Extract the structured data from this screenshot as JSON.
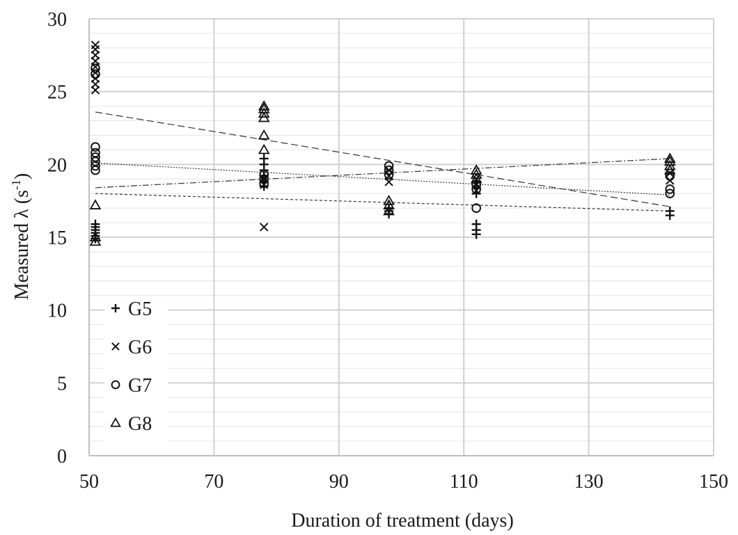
{
  "chart_data": {
    "type": "scatter",
    "title": "",
    "xlabel": "Duration of treatment (days)",
    "ylabel_main": "Measured λ (s",
    "ylabel_sup": "-1",
    "ylabel_close": ")",
    "xlim": [
      50,
      150
    ],
    "ylim": [
      0,
      30
    ],
    "xticks": [
      50,
      70,
      90,
      110,
      130,
      150
    ],
    "yticks": [
      0,
      5,
      10,
      15,
      20,
      25,
      30
    ],
    "x_tick_labels": [
      "50",
      "70",
      "90",
      "110",
      "130",
      "150"
    ],
    "y_tick_labels": [
      "0",
      "5",
      "10",
      "15",
      "20",
      "25",
      "30"
    ],
    "grid": true,
    "minor_grid": true,
    "legend_position": "bottom-left",
    "colors": {
      "marker": "#111111",
      "grid_major": "#d0d0d0",
      "grid_minor": "#e4e4e4",
      "axis": "#bfbfbf"
    },
    "series": [
      {
        "name": "G5",
        "marker": "plus",
        "points": [
          [
            51,
            14.9
          ],
          [
            51,
            15.1
          ],
          [
            51,
            15.3
          ],
          [
            51,
            15.5
          ],
          [
            51,
            15.7
          ],
          [
            51,
            15.9
          ],
          [
            78,
            18.5
          ],
          [
            78,
            18.8
          ],
          [
            78,
            19.2
          ],
          [
            78,
            19.6
          ],
          [
            78,
            20.0
          ],
          [
            78,
            20.4
          ],
          [
            98,
            16.6
          ],
          [
            98,
            16.8
          ],
          [
            98,
            17.0
          ],
          [
            112,
            15.2
          ],
          [
            112,
            15.5
          ],
          [
            112,
            15.9
          ],
          [
            112,
            18.0
          ],
          [
            112,
            18.4
          ],
          [
            112,
            18.8
          ],
          [
            143,
            16.5
          ],
          [
            143,
            16.8
          ]
        ],
        "trendline": {
          "style": "dotted",
          "x": [
            51,
            143
          ],
          "y": [
            18.0,
            16.8
          ]
        }
      },
      {
        "name": "G6",
        "marker": "x",
        "points": [
          [
            51,
            25.1
          ],
          [
            51,
            25.5
          ],
          [
            51,
            25.9
          ],
          [
            51,
            26.3
          ],
          [
            51,
            26.7
          ],
          [
            51,
            27.1
          ],
          [
            51,
            27.5
          ],
          [
            51,
            27.9
          ],
          [
            51,
            28.2
          ],
          [
            78,
            15.7
          ],
          [
            78,
            18.6
          ],
          [
            78,
            19.0
          ],
          [
            98,
            18.8
          ],
          [
            98,
            19.2
          ],
          [
            98,
            19.6
          ],
          [
            112,
            18.2
          ],
          [
            112,
            18.6
          ],
          [
            112,
            19.0
          ],
          [
            143,
            18.9
          ],
          [
            143,
            19.4
          ]
        ],
        "trendline": {
          "style": "dashed",
          "x": [
            51,
            143
          ],
          "y": [
            23.6,
            17.1
          ]
        }
      },
      {
        "name": "G7",
        "marker": "circle",
        "points": [
          [
            51,
            19.6
          ],
          [
            51,
            19.9
          ],
          [
            51,
            20.2
          ],
          [
            51,
            20.5
          ],
          [
            51,
            20.8
          ],
          [
            51,
            21.2
          ],
          [
            51,
            26.2
          ],
          [
            51,
            26.6
          ],
          [
            78,
            18.7
          ],
          [
            78,
            19.0
          ],
          [
            78,
            19.3
          ],
          [
            98,
            19.3
          ],
          [
            98,
            19.6
          ],
          [
            98,
            19.9
          ],
          [
            112,
            17.0
          ],
          [
            112,
            18.3
          ],
          [
            112,
            18.6
          ],
          [
            143,
            18.0
          ],
          [
            143,
            18.3
          ],
          [
            143,
            19.2
          ]
        ],
        "trendline": {
          "style": "dotted-fine",
          "x": [
            51,
            143
          ],
          "y": [
            20.1,
            17.9
          ]
        }
      },
      {
        "name": "G8",
        "marker": "triangle",
        "points": [
          [
            51,
            14.7
          ],
          [
            51,
            15.0
          ],
          [
            51,
            17.2
          ],
          [
            78,
            21.0
          ],
          [
            78,
            22.0
          ],
          [
            78,
            23.2
          ],
          [
            78,
            23.5
          ],
          [
            78,
            23.8
          ],
          [
            78,
            24.0
          ],
          [
            98,
            16.8
          ],
          [
            98,
            17.2
          ],
          [
            98,
            17.5
          ],
          [
            112,
            19.0
          ],
          [
            112,
            19.3
          ],
          [
            112,
            19.6
          ],
          [
            143,
            19.6
          ],
          [
            143,
            19.9
          ],
          [
            143,
            20.2
          ],
          [
            143,
            20.4
          ]
        ],
        "trendline": {
          "style": "dash-dot",
          "x": [
            51,
            143
          ],
          "y": [
            18.4,
            20.4
          ]
        }
      }
    ]
  }
}
